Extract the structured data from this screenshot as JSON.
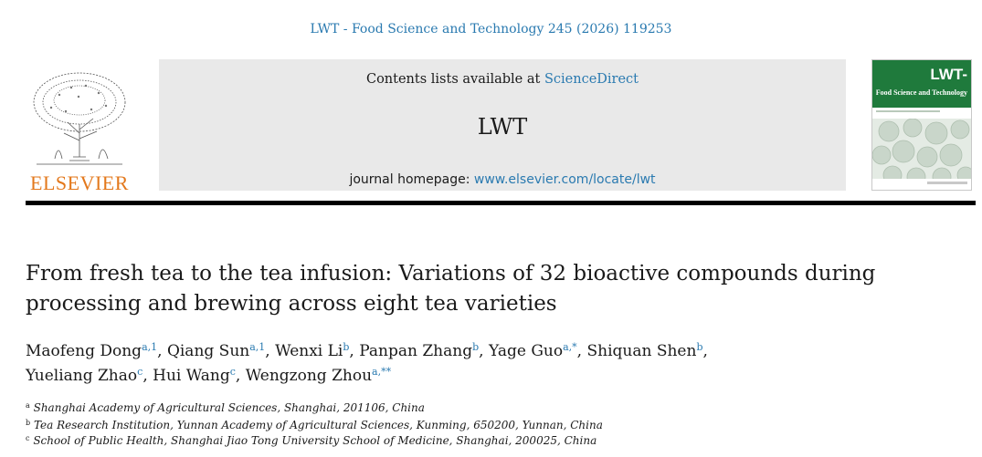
{
  "header": {
    "citation": "LWT - Food Science and Technology 245 (2026) 119253"
  },
  "publisher": {
    "name": "ELSEVIER",
    "logo_color": "#e3781c"
  },
  "banner": {
    "contents_prefix": "Contents lists available at ",
    "contents_link": "ScienceDirect",
    "journal_short": "LWT",
    "homepage_prefix": "journal homepage: ",
    "homepage_link": "www.elsevier.com/locate/lwt",
    "background": "#e9e9e9"
  },
  "cover": {
    "title": "LWT-",
    "subtitle": "Food Science and Technology",
    "accent": "#1f7a3c"
  },
  "article": {
    "title": "From fresh tea to the tea infusion: Variations of 32 bioactive compounds during processing and brewing across eight tea varieties",
    "authors": [
      {
        "name": "Maofeng Dong",
        "sup": "a,1",
        "sep": ", "
      },
      {
        "name": "Qiang Sun",
        "sup": "a,1",
        "sep": ", "
      },
      {
        "name": "Wenxi Li",
        "sup": "b",
        "sep": ", "
      },
      {
        "name": "Panpan Zhang",
        "sup": "b",
        "sep": ", "
      },
      {
        "name": "Yage Guo",
        "sup": "a,*",
        "sep": ", "
      },
      {
        "name": "Shiquan Shen",
        "sup": "b",
        "sep": ","
      },
      {
        "name": "Yueliang Zhao",
        "sup": "c",
        "sep": ", "
      },
      {
        "name": "Hui Wang",
        "sup": "c",
        "sep": ", "
      },
      {
        "name": "Wengzong Zhou",
        "sup": "a,**",
        "sep": ""
      }
    ],
    "affiliations": [
      {
        "label": "a",
        "text": "Shanghai Academy of Agricultural Sciences, Shanghai, 201106, China"
      },
      {
        "label": "b",
        "text": "Tea Research Institution, Yunnan Academy of Agricultural Sciences, Kunming, 650200, Yunnan, China"
      },
      {
        "label": "c",
        "text": "School of Public Health, Shanghai Jiao Tong University School of Medicine, Shanghai, 200025, China"
      }
    ]
  },
  "colors": {
    "link": "#2a7ab0",
    "text": "#1a1a1a"
  }
}
